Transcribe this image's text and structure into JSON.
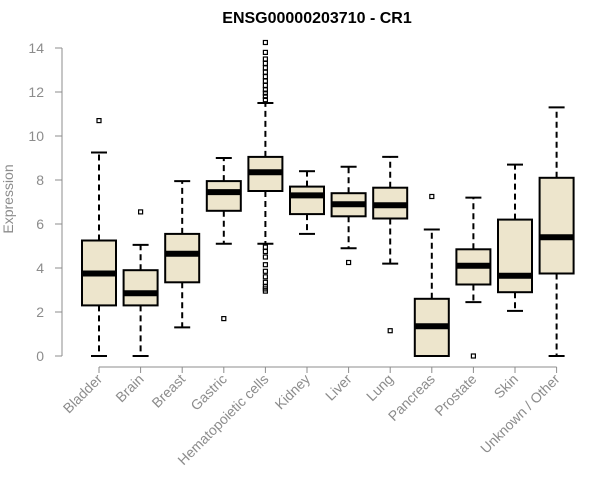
{
  "chart_data": {
    "type": "boxplot",
    "title": "ENSG00000203710 - CR1",
    "xlabel": "",
    "ylabel": "Expression",
    "ylim": [
      0,
      14
    ],
    "yticks": [
      0,
      2,
      4,
      6,
      8,
      10,
      12,
      14
    ],
    "grid": false,
    "box_color": "#ede5cc",
    "line_color": "#000000",
    "axis_color": "#8c8c8c",
    "categories": [
      "Bladder",
      "Brain",
      "Breast",
      "Gastric",
      "Hematopoietic cells",
      "Kidney",
      "Liver",
      "Lung",
      "Pancreas",
      "Prostate",
      "Skin",
      "Unknown / Other"
    ],
    "boxes": [
      {
        "whisker_low": 0.0,
        "q1": 2.3,
        "median": 3.75,
        "q3": 5.25,
        "whisker_high": 9.25,
        "outliers": [
          10.7
        ]
      },
      {
        "whisker_low": 0.0,
        "q1": 2.3,
        "median": 2.85,
        "q3": 3.9,
        "whisker_high": 5.05,
        "outliers": [
          6.55
        ]
      },
      {
        "whisker_low": 1.3,
        "q1": 3.35,
        "median": 4.65,
        "q3": 5.55,
        "whisker_high": 7.95,
        "outliers": []
      },
      {
        "whisker_low": 5.1,
        "q1": 6.6,
        "median": 7.45,
        "q3": 7.95,
        "whisker_high": 9.0,
        "outliers": [
          1.7
        ]
      },
      {
        "whisker_low": 5.1,
        "q1": 7.5,
        "median": 8.35,
        "q3": 9.05,
        "whisker_high": 11.5,
        "outliers": [
          2.95,
          3.05,
          3.15,
          3.35,
          3.6,
          3.85,
          4.15,
          4.5,
          4.75,
          4.95,
          11.65,
          11.8,
          11.95,
          12.1,
          12.3,
          12.5,
          12.7,
          12.9,
          13.1,
          13.3,
          13.5,
          13.8,
          14.25
        ]
      },
      {
        "whisker_low": 5.55,
        "q1": 6.45,
        "median": 7.3,
        "q3": 7.7,
        "whisker_high": 8.4,
        "outliers": []
      },
      {
        "whisker_low": 4.9,
        "q1": 6.35,
        "median": 6.9,
        "q3": 7.4,
        "whisker_high": 8.6,
        "outliers": [
          4.25
        ]
      },
      {
        "whisker_low": 4.2,
        "q1": 6.25,
        "median": 6.85,
        "q3": 7.65,
        "whisker_high": 9.05,
        "outliers": [
          1.15
        ]
      },
      {
        "whisker_low": 0.0,
        "q1": 0.0,
        "median": 1.35,
        "q3": 2.6,
        "whisker_high": 5.75,
        "outliers": [
          7.25
        ]
      },
      {
        "whisker_low": 2.45,
        "q1": 3.25,
        "median": 4.1,
        "q3": 4.85,
        "whisker_high": 7.2,
        "outliers": [
          0.0
        ]
      },
      {
        "whisker_low": 2.05,
        "q1": 2.9,
        "median": 3.65,
        "q3": 6.2,
        "whisker_high": 8.7,
        "outliers": []
      },
      {
        "whisker_low": 0.0,
        "q1": 3.75,
        "median": 5.4,
        "q3": 8.1,
        "whisker_high": 11.3,
        "outliers": []
      }
    ]
  }
}
